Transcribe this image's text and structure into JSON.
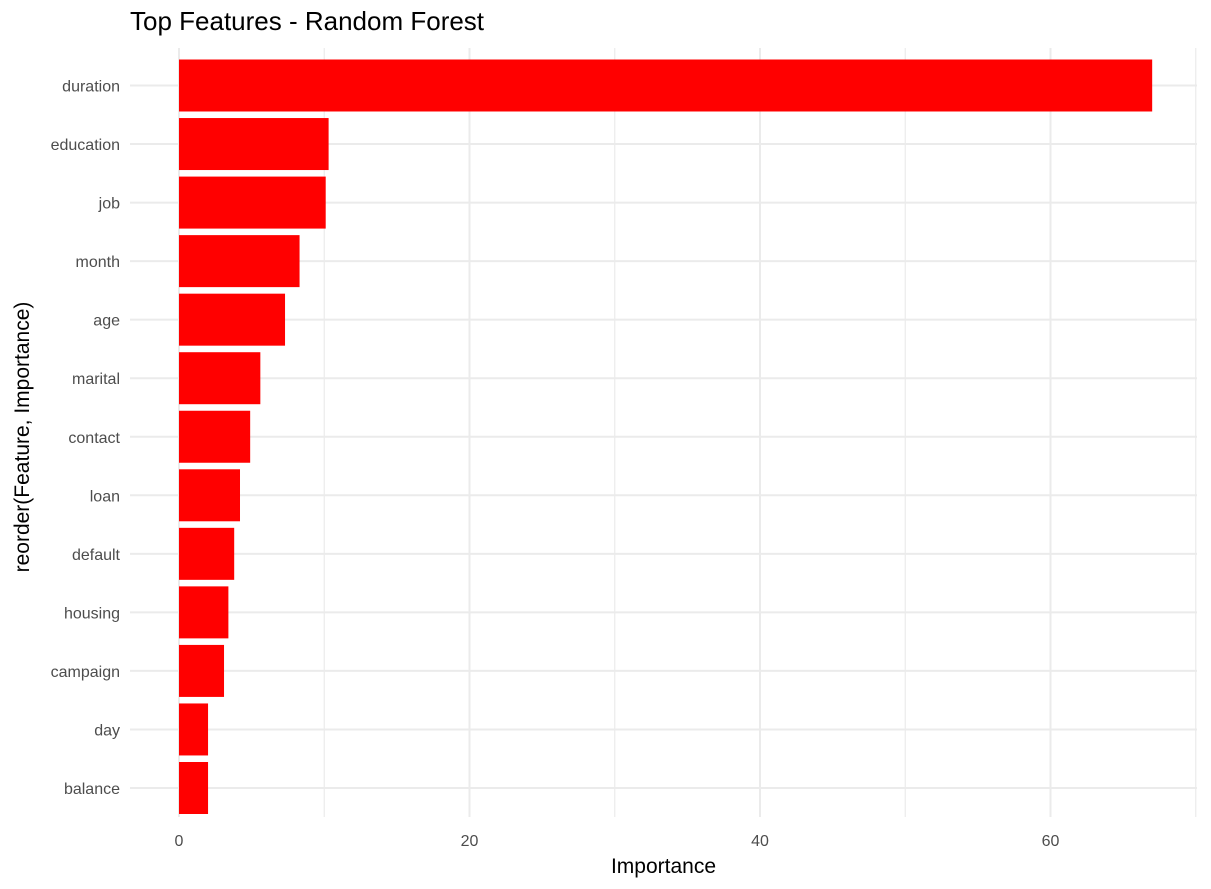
{
  "chart_data": {
    "type": "bar",
    "orientation": "horizontal",
    "title": "Top Features - Random Forest",
    "xlabel": "Importance",
    "ylabel": "reorder(Feature, Importance)",
    "categories": [
      "duration",
      "education",
      "job",
      "month",
      "age",
      "marital",
      "contact",
      "loan",
      "default",
      "housing",
      "campaign",
      "day",
      "balance"
    ],
    "values": [
      67.0,
      10.3,
      10.1,
      8.3,
      7.3,
      5.6,
      4.9,
      4.2,
      3.8,
      3.4,
      3.1,
      2.0,
      2.0
    ],
    "xlim": [
      0,
      70
    ],
    "x_ticks": [
      0,
      20,
      40,
      60
    ],
    "bar_color": "#ff0000",
    "grid": true,
    "grid_color": "#ebebeb",
    "legend": "none"
  }
}
